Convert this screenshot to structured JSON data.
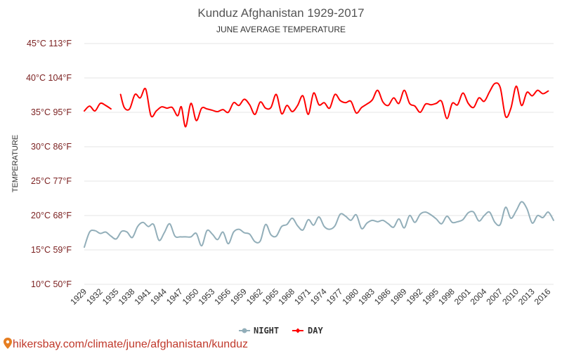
{
  "chart_data": {
    "type": "line",
    "title": "Kunduz Afghanistan 1929-2017",
    "subtitle": "JUNE AVERAGE TEMPERATURE",
    "ylabel": "TEMPERATURE",
    "xlabel": "",
    "ylim": [
      10,
      45
    ],
    "y_ticks": [
      {
        "value": 45,
        "label": "45°C 113°F"
      },
      {
        "value": 40,
        "label": "40°C 104°F"
      },
      {
        "value": 35,
        "label": "35°C 95°F"
      },
      {
        "value": 30,
        "label": "30°C 86°F"
      },
      {
        "value": 25,
        "label": "25°C 77°F"
      },
      {
        "value": 20,
        "label": "20°C 68°F"
      },
      {
        "value": 15,
        "label": "15°C 59°F"
      },
      {
        "value": 10,
        "label": "10°C 50°F"
      }
    ],
    "x_ticks": [
      "1929",
      "1932",
      "1935",
      "1938",
      "1941",
      "1944",
      "1947",
      "1950",
      "1953",
      "1956",
      "1959",
      "1962",
      "1965",
      "1968",
      "1971",
      "1974",
      "1977",
      "1980",
      "1983",
      "1986",
      "1989",
      "1992",
      "1995",
      "1998",
      "2001",
      "2004",
      "2007",
      "2010",
      "2013",
      "2016"
    ],
    "x_range": [
      1929,
      2017
    ],
    "grid": true,
    "legend_position": "bottom-center",
    "series": [
      {
        "name": "NIGHT",
        "color": "#92aeb9",
        "points": [
          [
            1929,
            15.4
          ],
          [
            1930,
            17.6
          ],
          [
            1931,
            17.8
          ],
          [
            1932,
            17.4
          ],
          [
            1933,
            17.6
          ],
          [
            1934,
            17.0
          ],
          [
            1935,
            16.6
          ],
          [
            1936,
            17.7
          ],
          [
            1937,
            17.6
          ],
          [
            1938,
            16.8
          ],
          [
            1939,
            18.4
          ],
          [
            1940,
            19.0
          ],
          [
            1941,
            18.4
          ],
          [
            1942,
            18.7
          ],
          [
            1943,
            16.4
          ],
          [
            1944,
            17.5
          ],
          [
            1945,
            18.8
          ],
          [
            1946,
            17.0
          ],
          [
            1947,
            16.9
          ],
          [
            1948,
            16.9
          ],
          [
            1949,
            16.9
          ],
          [
            1950,
            17.4
          ],
          [
            1951,
            15.6
          ],
          [
            1952,
            17.8
          ],
          [
            1953,
            17.3
          ],
          [
            1954,
            16.5
          ],
          [
            1955,
            17.6
          ],
          [
            1956,
            15.9
          ],
          [
            1957,
            17.6
          ],
          [
            1958,
            18.0
          ],
          [
            1959,
            17.5
          ],
          [
            1960,
            17.3
          ],
          [
            1961,
            16.2
          ],
          [
            1962,
            16.3
          ],
          [
            1963,
            18.7
          ],
          [
            1964,
            17.2
          ],
          [
            1965,
            17.0
          ],
          [
            1966,
            18.4
          ],
          [
            1967,
            18.7
          ],
          [
            1968,
            19.6
          ],
          [
            1969,
            18.5
          ],
          [
            1970,
            17.9
          ],
          [
            1971,
            19.4
          ],
          [
            1972,
            18.6
          ],
          [
            1973,
            19.8
          ],
          [
            1974,
            18.4
          ],
          [
            1975,
            18.0
          ],
          [
            1976,
            18.5
          ],
          [
            1977,
            20.2
          ],
          [
            1978,
            19.9
          ],
          [
            1979,
            19.3
          ],
          [
            1980,
            20.1
          ],
          [
            1981,
            18.1
          ],
          [
            1982,
            18.9
          ],
          [
            1983,
            19.3
          ],
          [
            1984,
            19.1
          ],
          [
            1985,
            19.3
          ],
          [
            1986,
            18.8
          ],
          [
            1987,
            18.3
          ],
          [
            1988,
            19.5
          ],
          [
            1989,
            18.2
          ],
          [
            1990,
            20.0
          ],
          [
            1991,
            19.0
          ],
          [
            1992,
            20.2
          ],
          [
            1993,
            20.5
          ],
          [
            1994,
            20.1
          ],
          [
            1995,
            19.5
          ],
          [
            1996,
            18.8
          ],
          [
            1997,
            19.9
          ],
          [
            1998,
            19.0
          ],
          [
            1999,
            19.1
          ],
          [
            2000,
            19.4
          ],
          [
            2001,
            20.4
          ],
          [
            2002,
            20.5
          ],
          [
            2003,
            19.2
          ],
          [
            2004,
            20.0
          ],
          [
            2005,
            20.5
          ],
          [
            2006,
            19.0
          ],
          [
            2007,
            18.7
          ],
          [
            2008,
            21.2
          ],
          [
            2009,
            19.6
          ],
          [
            2010,
            20.7
          ],
          [
            2011,
            22.0
          ],
          [
            2012,
            21.0
          ],
          [
            2013,
            18.9
          ],
          [
            2014,
            20.0
          ],
          [
            2015,
            19.7
          ],
          [
            2016,
            20.5
          ],
          [
            2017,
            19.3
          ]
        ]
      },
      {
        "name": "DAY",
        "color": "#ff0000",
        "segments": [
          [
            [
              1929,
              35.2
            ],
            [
              1930,
              35.9
            ],
            [
              1931,
              35.2
            ],
            [
              1932,
              36.3
            ],
            [
              1933,
              36.0
            ],
            [
              1934,
              35.5
            ]
          ],
          [
            [
              1935.8,
              37.6
            ],
            [
              1936.5,
              35.7
            ],
            [
              1937.5,
              35.5
            ],
            [
              1938.5,
              37.6
            ],
            [
              1939.5,
              37.1
            ],
            [
              1940.5,
              38.4
            ],
            [
              1941.5,
              34.5
            ],
            [
              1942.5,
              35.2
            ],
            [
              1943.5,
              35.8
            ],
            [
              1944.5,
              35.6
            ],
            [
              1945.5,
              35.7
            ],
            [
              1946.5,
              34.5
            ],
            [
              1947.2,
              35.8
            ],
            [
              1948,
              32.9
            ],
            [
              1949,
              36.3
            ],
            [
              1950,
              33.8
            ],
            [
              1951,
              35.6
            ],
            [
              1952,
              35.5
            ],
            [
              1953,
              35.3
            ],
            [
              1954,
              35.1
            ],
            [
              1955,
              35.4
            ],
            [
              1956,
              35.0
            ],
            [
              1957,
              36.4
            ],
            [
              1958,
              36.0
            ],
            [
              1959,
              36.9
            ],
            [
              1960,
              36.1
            ],
            [
              1961,
              34.7
            ],
            [
              1962,
              36.5
            ],
            [
              1963,
              35.6
            ],
            [
              1964,
              35.7
            ],
            [
              1965,
              37.6
            ],
            [
              1966,
              34.8
            ],
            [
              1967,
              36.0
            ],
            [
              1968,
              35.1
            ],
            [
              1969,
              36.0
            ],
            [
              1970,
              37.4
            ],
            [
              1971,
              34.7
            ],
            [
              1972,
              37.8
            ],
            [
              1973,
              36.1
            ],
            [
              1974,
              36.4
            ],
            [
              1975,
              35.6
            ],
            [
              1976,
              37.6
            ],
            [
              1977,
              36.7
            ],
            [
              1978,
              36.4
            ],
            [
              1979,
              36.6
            ],
            [
              1980,
              34.9
            ],
            [
              1981,
              35.7
            ],
            [
              1982,
              36.2
            ],
            [
              1983,
              36.8
            ],
            [
              1984,
              38.2
            ],
            [
              1985,
              36.5
            ],
            [
              1986,
              36.0
            ],
            [
              1987,
              37.1
            ],
            [
              1988,
              36.3
            ],
            [
              1989,
              38.2
            ],
            [
              1990,
              36.3
            ],
            [
              1991,
              35.9
            ],
            [
              1992,
              35.0
            ],
            [
              1993,
              36.2
            ],
            [
              1994,
              36.1
            ],
            [
              1995,
              36.3
            ],
            [
              1996,
              36.6
            ],
            [
              1997,
              34.1
            ],
            [
              1998,
              36.3
            ],
            [
              1999,
              36.1
            ],
            [
              2000,
              37.8
            ],
            [
              2001,
              36.3
            ],
            [
              2002,
              35.7
            ],
            [
              2003,
              37.1
            ],
            [
              2004,
              36.6
            ],
            [
              2005,
              38.0
            ],
            [
              2006,
              39.2
            ],
            [
              2007,
              38.6
            ],
            [
              2008,
              34.4
            ],
            [
              2009,
              35.6
            ],
            [
              2010,
              38.8
            ],
            [
              2011,
              36.0
            ],
            [
              2012,
              37.9
            ],
            [
              2013,
              37.4
            ],
            [
              2014,
              38.2
            ],
            [
              2015,
              37.7
            ],
            [
              2016,
              38.1
            ]
          ]
        ]
      }
    ]
  },
  "footer": {
    "url": "hikersbay.com/climate/june/afghanistan/kunduz"
  }
}
